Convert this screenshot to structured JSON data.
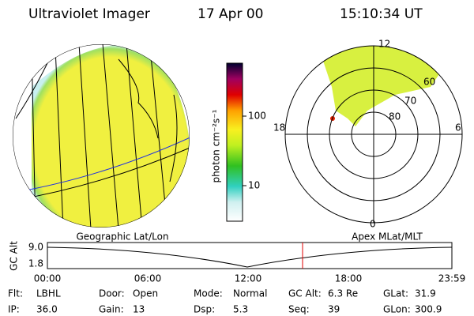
{
  "header": {
    "title": "Ultraviolet Imager",
    "date": "17 Apr 00",
    "time": "15:10:34 UT"
  },
  "colorbar": {
    "label": "photon cm⁻²s⁻¹",
    "ticks": [
      "100",
      "10"
    ]
  },
  "polar": {
    "mlt_labels": [
      "12",
      "18",
      "6",
      "0"
    ],
    "mlat_labels": [
      "60",
      "70",
      "80"
    ]
  },
  "panels": {
    "left_caption": "Geographic Lat/Lon",
    "right_caption": "Apex MLat/MLT"
  },
  "timeline": {
    "axis_label": "GC Alt",
    "y_labels": [
      "9.0",
      "1.8"
    ],
    "times": [
      "00:00",
      "06:00",
      "12:00",
      "18:00",
      "23:59"
    ]
  },
  "status": {
    "rows": [
      [
        {
          "label": "Flt:",
          "value": "LBHL"
        },
        {
          "label": "Door:",
          "value": "Open"
        },
        {
          "label": "Mode:",
          "value": "Normal"
        },
        {
          "label": "GC Alt:",
          "value": "6.3 Re"
        },
        {
          "label": "GLat:",
          "value": "31.9"
        }
      ],
      [
        {
          "label": "IP:",
          "value": "36.0"
        },
        {
          "label": "Gain:",
          "value": "13"
        },
        {
          "label": "Dsp:",
          "value": "5.3"
        },
        {
          "label": "Seq:",
          "value": "39"
        },
        {
          "label": "GLon:",
          "value": "300.9"
        }
      ]
    ]
  }
}
